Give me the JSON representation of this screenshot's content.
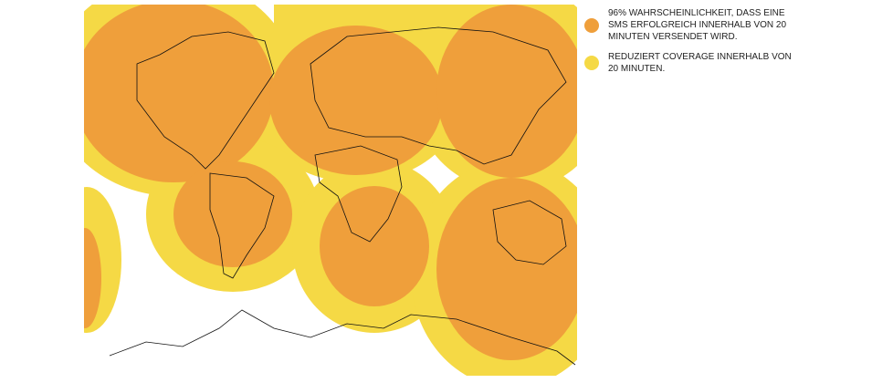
{
  "legend": [
    {
      "label": "96% WAHRSCHEINLICHKEIT, DASS EINE SMS ERFOLGREICH INNERHALB VON 20 MINUTEN VERSENDET WIRD."
    },
    {
      "label": "REDUZIERT COVERAGE INNERHALB VON 20 MINUTEN."
    }
  ]
}
